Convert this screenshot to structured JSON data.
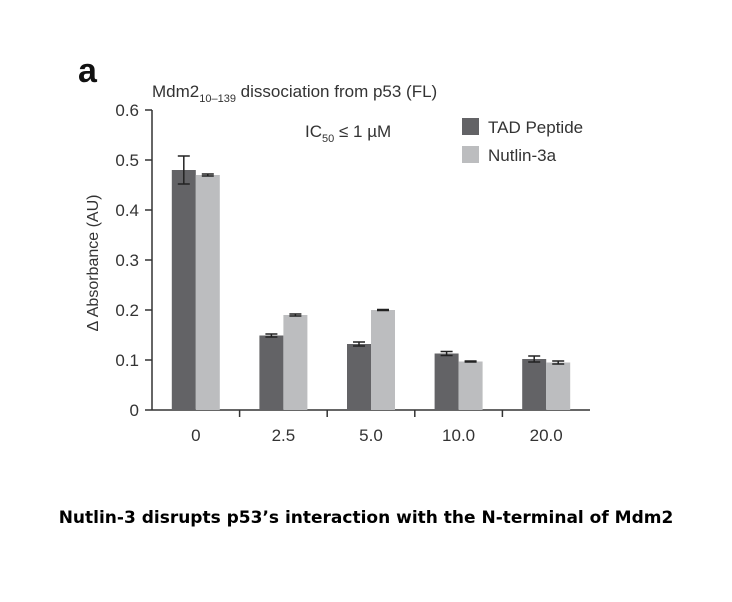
{
  "panel_letter": "a",
  "title_main": "Mdm2",
  "title_sub": "10–139",
  "title_rest": " dissociation from p53 (FL)",
  "ic50_text_pre": "IC",
  "ic50_sub": "50",
  "ic50_text_post": " ≤ 1 µM",
  "caption": "Nutlin-3 disrupts p53’s interaction with the N-terminal of Mdm2",
  "chart_data": {
    "type": "bar",
    "categories": [
      "0",
      "2.5",
      "5.0",
      "10.0",
      "20.0"
    ],
    "ylabel": "Δ Absorbance (AU)",
    "xlabel": "",
    "ylim": [
      0,
      0.6
    ],
    "yticks": [
      "0",
      "0.1",
      "0.2",
      "0.3",
      "0.4",
      "0.5",
      "0.6"
    ],
    "legend_position": "top-right",
    "series": [
      {
        "name": "TAD Peptide",
        "color": "#636366",
        "values": [
          0.48,
          0.149,
          0.132,
          0.113,
          0.102
        ],
        "errors": [
          0.028,
          0.003,
          0.004,
          0.004,
          0.006
        ]
      },
      {
        "name": "Nutlin-3a",
        "color": "#bcbdbf",
        "values": [
          0.47,
          0.19,
          0.2,
          0.097,
          0.095
        ],
        "errors": [
          0.002,
          0.002,
          0.001,
          0.001,
          0.003
        ]
      }
    ]
  }
}
